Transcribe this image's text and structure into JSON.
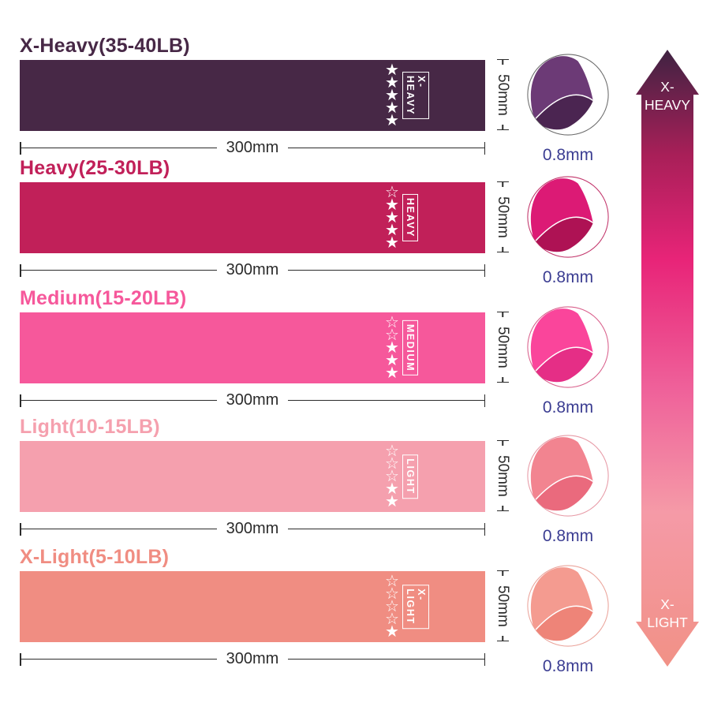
{
  "icons": {
    "star_filled": "★",
    "star_empty": "☆"
  },
  "dims": {
    "width": "300mm",
    "height": "50mm",
    "thickness": "0.8mm"
  },
  "colors": {
    "background": "#ffffff",
    "dimension_text": "#2b2b2b",
    "thickness_text": "#3B3D92",
    "star": "#ffffff",
    "tag_text": "#ffffff"
  },
  "bands": [
    {
      "title": "X-Heavy(35-40LB)",
      "tag": "X-HEAVY",
      "stars_filled": 5,
      "stars_empty": 0,
      "color": "#472846",
      "circle": {
        "sheet": "#6C3A76",
        "under": "#4B2551",
        "border": "#6b6b6b"
      }
    },
    {
      "title": "Heavy(25-30LB)",
      "tag": "HEAVY",
      "stars_filled": 4,
      "stars_empty": 1,
      "color": "#C12059",
      "circle": {
        "sheet": "#DC1A75",
        "under": "#AE1254",
        "border": "#C2356B"
      }
    },
    {
      "title": "Medium(15-20LB)",
      "tag": "MEDIUM",
      "stars_filled": 3,
      "stars_empty": 2,
      "color": "#F6589B",
      "circle": {
        "sheet": "#FA459B",
        "under": "#E52E86",
        "border": "#D9608C"
      }
    },
    {
      "title": "Light(10-15LB)",
      "tag": "LIGHT",
      "stars_filled": 2,
      "stars_empty": 3,
      "color": "#F5A0AE",
      "circle": {
        "sheet": "#F28490",
        "under": "#EA6A7D",
        "border": "#E79AA6"
      }
    },
    {
      "title": "X-Light(5-10LB)",
      "tag": "X-LIGHT",
      "stars_filled": 1,
      "stars_empty": 4,
      "color": "#F08D82",
      "circle": {
        "sheet": "#F49B90",
        "under": "#EE8478",
        "border": "#EBA49B"
      }
    }
  ],
  "scale_arrow": {
    "top_line1": "X-",
    "top_line2": "HEAVY",
    "bottom_line1": "X-",
    "bottom_line2": "LIGHT",
    "text_color": "#ffffff",
    "gradient": [
      "#3F2342",
      "#A81F58",
      "#E82478",
      "#EF619A",
      "#F59AA7",
      "#F19186"
    ]
  }
}
